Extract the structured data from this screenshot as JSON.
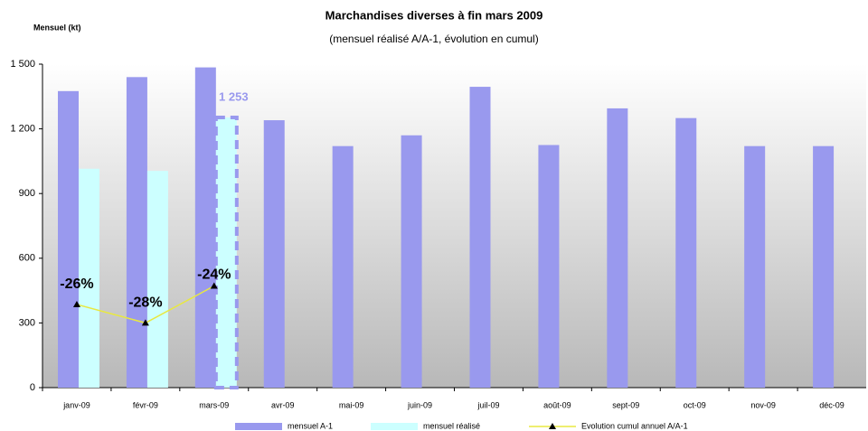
{
  "chart_data": {
    "type": "bar",
    "title": "Marchandises diverses à fin mars 2009",
    "subtitle": "(mensuel réalisé A/A-1, évolution en cumul)",
    "y_label": "Mensuel (kt)",
    "categories": [
      "janv-09",
      "févr-09",
      "mars-09",
      "avr-09",
      "mai-09",
      "juin-09",
      "juil-09",
      "août-09",
      "sept-09",
      "oct-09",
      "nov-09",
      "déc-09"
    ],
    "series": [
      {
        "name": "mensuel A-1",
        "color": "#9999ee",
        "values": [
          1375,
          1440,
          1485,
          1240,
          1120,
          1170,
          1395,
          1125,
          1295,
          1250,
          1120,
          1120
        ]
      },
      {
        "name": "mensuel réalisé",
        "color": "#ccffff",
        "values": [
          1015,
          1005,
          1253,
          null,
          null,
          null,
          null,
          null,
          null,
          null,
          null,
          null
        ],
        "value_labels": [
          null,
          null,
          "1 253",
          null,
          null,
          null,
          null,
          null,
          null,
          null,
          null,
          null
        ]
      },
      {
        "name": "Evolution cumul annuel A/A-1",
        "type": "line",
        "axis": "y2",
        "color": "#e8e840",
        "values": [
          -26,
          -28,
          -24,
          null,
          null,
          null,
          null,
          null,
          null,
          null,
          null,
          null
        ],
        "value_labels": [
          "-26%",
          "-28%",
          "-24%",
          null,
          null,
          null,
          null,
          null,
          null,
          null,
          null,
          null
        ]
      }
    ],
    "ylim": [
      0,
      1500
    ],
    "yticks": [
      0,
      300,
      600,
      900,
      {
        "value": 1200,
        "label": "1 200"
      },
      {
        "value": 1500,
        "label": "1 500"
      }
    ],
    "y2lim": [
      -35,
      0
    ]
  }
}
